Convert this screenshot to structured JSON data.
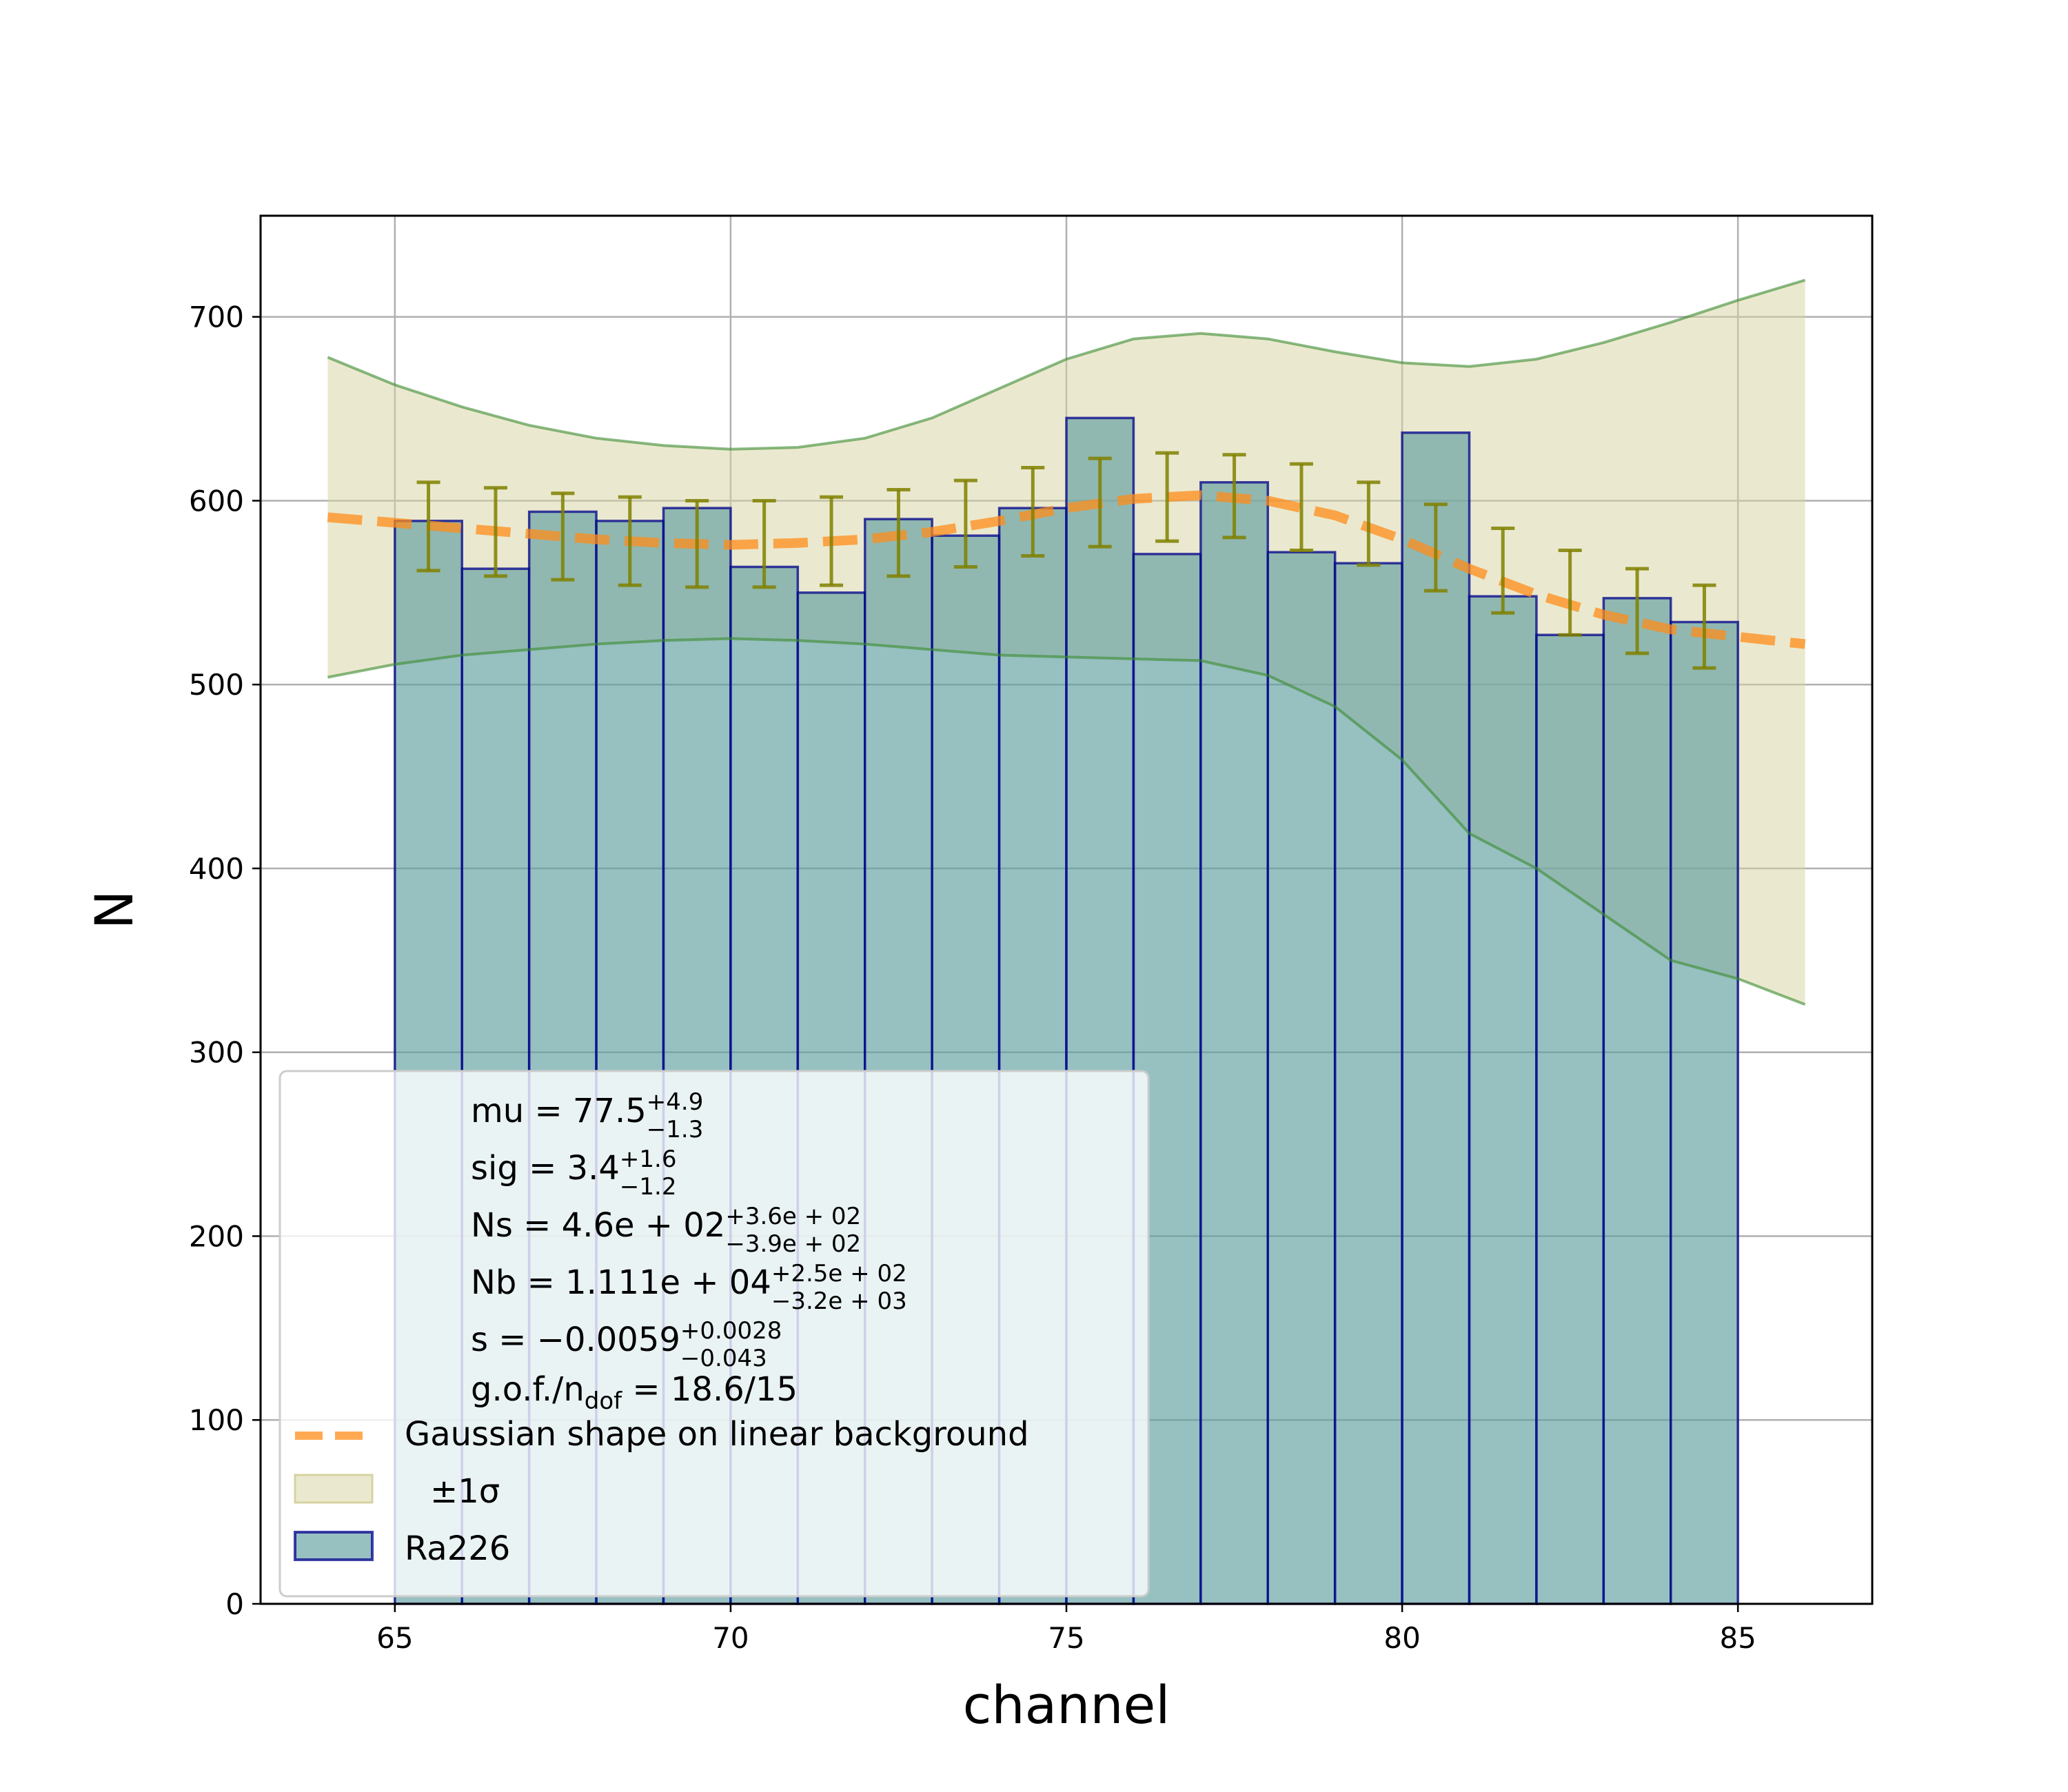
{
  "chart_data": {
    "type": "bar",
    "xlabel": "channel",
    "ylabel": "N",
    "xlim": [
      63,
      87
    ],
    "ylim": [
      0,
      755
    ],
    "grid": true,
    "x_ticks": [
      65,
      70,
      75,
      80,
      85
    ],
    "y_ticks": [
      0,
      100,
      200,
      300,
      400,
      500,
      600,
      700
    ],
    "histogram": {
      "name": "Ra226",
      "bin_edges": [
        65,
        66,
        67,
        68,
        69,
        70,
        71,
        72,
        73,
        74,
        75,
        76,
        77,
        78,
        79,
        80,
        81,
        82,
        83,
        84,
        85
      ],
      "values": [
        589,
        563,
        594,
        589,
        596,
        564,
        550,
        590,
        581,
        596,
        645,
        571,
        610,
        572,
        566,
        637,
        548,
        527,
        547,
        534
      ],
      "face_color": "#5f9ea0",
      "edge_color": "#00008b"
    },
    "error_bars": {
      "x": [
        65.5,
        66.5,
        67.5,
        68.5,
        69.5,
        70.5,
        71.5,
        72.5,
        73.5,
        74.5,
        75.5,
        76.5,
        77.5,
        78.5,
        79.5,
        80.5,
        81.5,
        82.5,
        83.5,
        84.5
      ],
      "low": [
        562,
        559,
        557,
        554,
        553,
        553,
        554,
        559,
        564,
        570,
        575,
        578,
        580,
        573,
        565,
        551,
        539,
        527,
        517,
        509
      ],
      "high": [
        610,
        607,
        604,
        602,
        600,
        600,
        602,
        606,
        611,
        618,
        623,
        626,
        625,
        620,
        610,
        598,
        585,
        573,
        563,
        554
      ],
      "color": "#808000"
    },
    "fit_curve": {
      "name": "Gaussian shape on linear background",
      "color": "#ff8c1a",
      "x": [
        64,
        65,
        66,
        67,
        68,
        69,
        70,
        71,
        72,
        73,
        74,
        75,
        76,
        77,
        78,
        79,
        80,
        81,
        82,
        83,
        84,
        85,
        86
      ],
      "y": [
        591,
        588,
        585,
        582,
        579,
        577,
        576,
        577,
        579,
        583,
        589,
        596,
        601,
        603,
        600,
        592,
        579,
        563,
        549,
        538,
        530,
        526,
        522
      ]
    },
    "band": {
      "name": "±1σ",
      "fill_color": "#d6d3a0",
      "line_color": "#3a8a2e",
      "x": [
        64,
        65,
        66,
        67,
        68,
        69,
        70,
        71,
        72,
        73,
        74,
        75,
        76,
        77,
        78,
        79,
        80,
        81,
        82,
        83,
        84,
        85,
        86
      ],
      "upper": [
        678,
        663,
        651,
        641,
        634,
        630,
        628,
        629,
        634,
        645,
        661,
        677,
        688,
        691,
        688,
        681,
        675,
        673,
        677,
        686,
        697,
        709,
        720
      ],
      "lower": [
        504,
        511,
        516,
        519,
        522,
        524,
        525,
        524,
        522,
        519,
        516,
        515,
        514,
        513,
        505,
        488,
        459,
        419,
        400,
        375,
        350,
        340,
        326
      ]
    },
    "legend": {
      "position": "lower-left",
      "params": [
        {
          "label": "mu = 77.5",
          "sup": "+4.9",
          "sub": "−1.3"
        },
        {
          "label": "sig = 3.4",
          "sup": "+1.6",
          "sub": "−1.2"
        },
        {
          "label": "Ns = 4.6e + 02",
          "sup": "+3.6e + 02",
          "sub": "−3.9e + 02"
        },
        {
          "label": "Nb = 1.111e + 04",
          "sup": "+2.5e + 02",
          "sub": "−3.2e + 03"
        },
        {
          "label": "s = −0.0059",
          "sup": "+0.0028",
          "sub": "−0.043"
        }
      ],
      "gof_label": "g.o.f./n",
      "gof_sub": "dof",
      "gof_value": " = 18.6/15",
      "entries": [
        {
          "label": "Gaussian shape on linear background",
          "kind": "dashed-line"
        },
        {
          "label": "±1σ",
          "kind": "band"
        },
        {
          "label": "Ra226",
          "kind": "hist"
        }
      ]
    }
  }
}
